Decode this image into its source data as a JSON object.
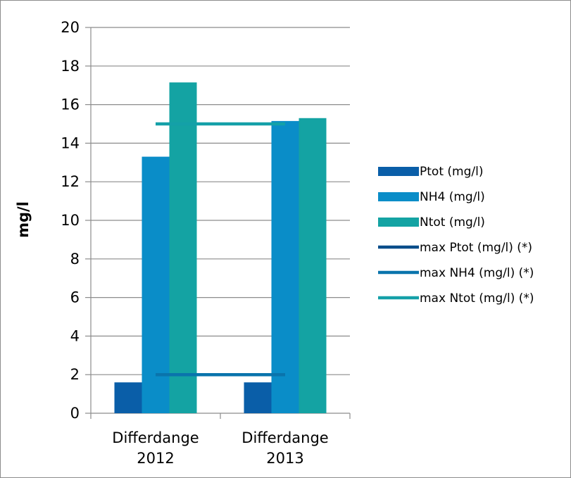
{
  "chart_data": {
    "type": "bar",
    "title": "",
    "xlabel": "",
    "ylabel": "mg/l",
    "ylim": [
      0,
      20
    ],
    "yticks": [
      "0",
      "2",
      "4",
      "6",
      "8",
      "10",
      "12",
      "14",
      "16",
      "18",
      "20"
    ],
    "categories": [
      [
        "Differdange",
        "2012"
      ],
      [
        "Differdange",
        "2013"
      ]
    ],
    "grid": "horizontal",
    "legend_position": "right",
    "series": [
      {
        "name": "Ptot (mg/l)",
        "kind": "bar",
        "color": "#0a5ea8",
        "values": [
          1.6,
          1.6
        ]
      },
      {
        "name": "NH4 (mg/l)",
        "kind": "bar",
        "color": "#0a8dc8",
        "values": [
          13.3,
          15.15
        ]
      },
      {
        "name": "Ntot (mg/l)",
        "kind": "bar",
        "color": "#14a3a3",
        "values": [
          17.15,
          15.3
        ]
      },
      {
        "name": "max Ptot (mg/l)  (*)",
        "kind": "line",
        "color": "#0a4d8a",
        "values": [
          2,
          2
        ]
      },
      {
        "name": "max NH4 (mg/l) (*)",
        "kind": "line",
        "color": "#0a74ac",
        "values": [
          2,
          2
        ]
      },
      {
        "name": "max Ntot (mg/l) (*)",
        "kind": "line",
        "color": "#14a0a8",
        "values": [
          15,
          15
        ]
      }
    ]
  }
}
